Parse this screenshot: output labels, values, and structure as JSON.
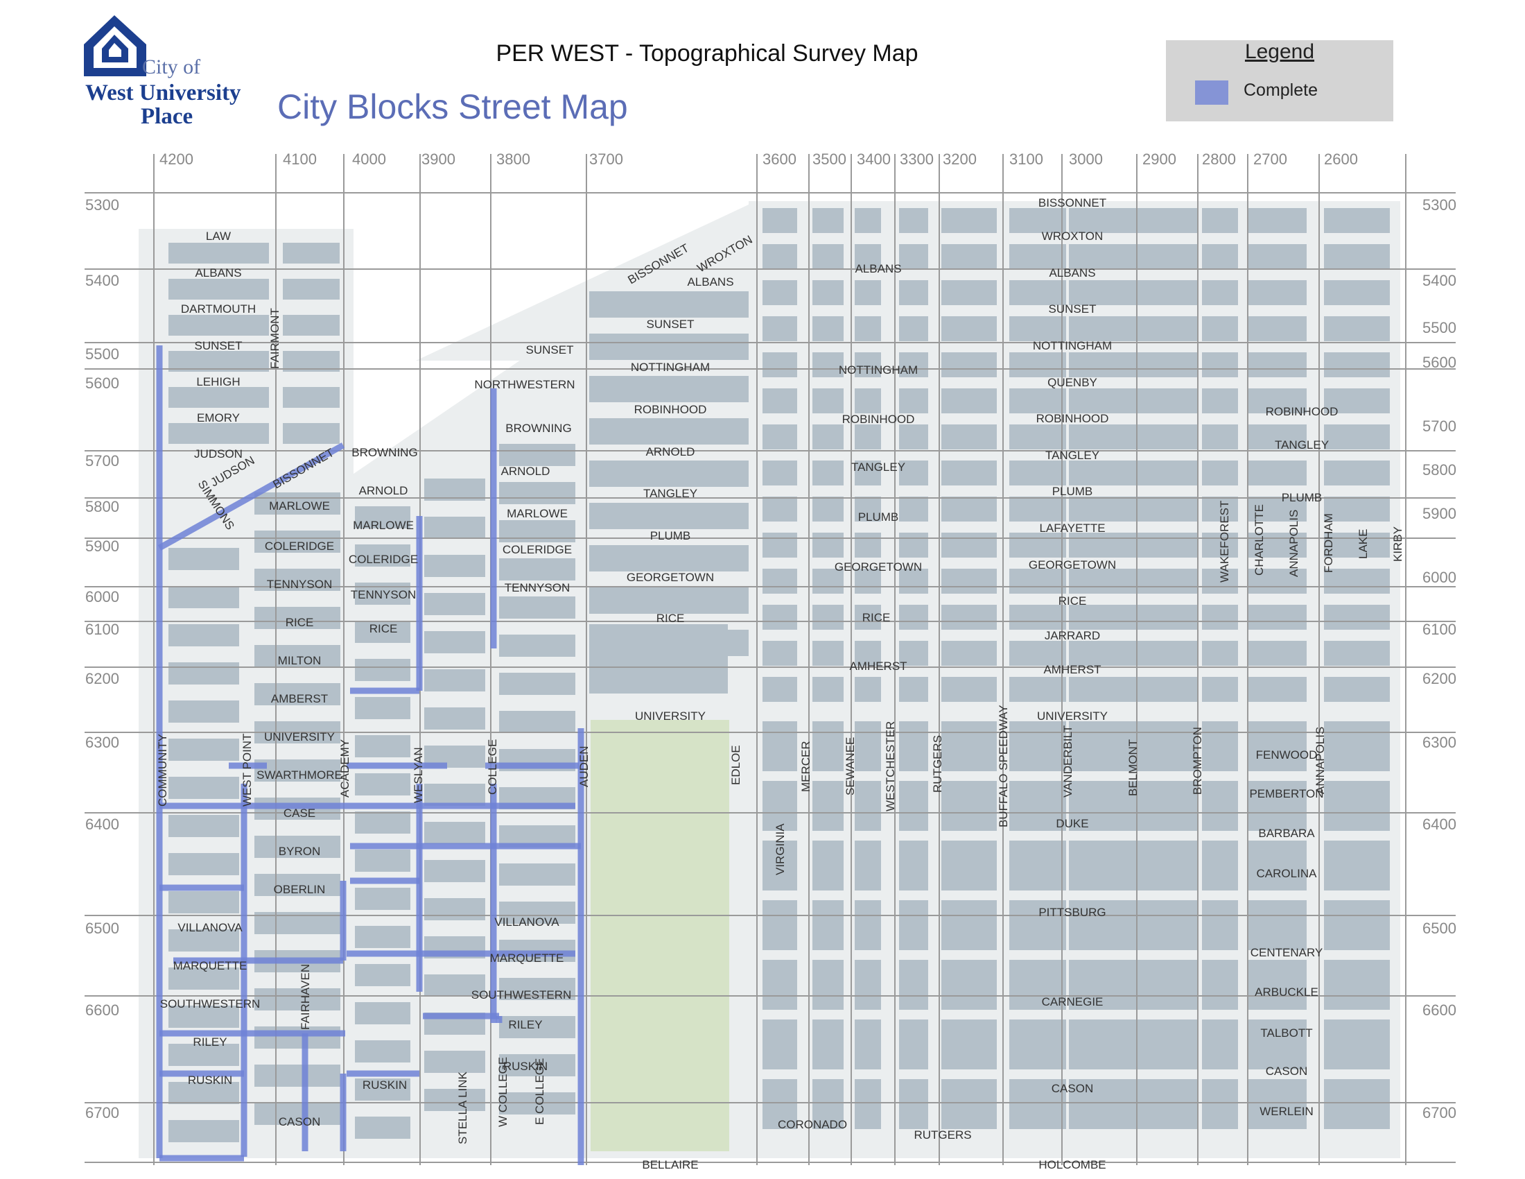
{
  "header": {
    "title": "PER WEST - Topographical Survey Map",
    "subtitle": "City Blocks Street Map"
  },
  "logo": {
    "line1": "City of",
    "line2": "West University",
    "line3": "Place"
  },
  "legend": {
    "title": "Legend",
    "items": [
      {
        "label": "Complete",
        "color": "#8594d6"
      }
    ]
  },
  "colors": {
    "block": "#b4c0c9",
    "background_area": "#ebeeef",
    "park": "#d6e3c7",
    "complete": "#6f81d6",
    "grid": "#9a9a9a"
  },
  "map": {
    "top_numbers": [
      "4200",
      "4100",
      "4000",
      "3900",
      "3800",
      "3700",
      "3600",
      "3500",
      "3400",
      "3300",
      "3200",
      "3100",
      "3000",
      "2900",
      "2800",
      "2700",
      "2600"
    ],
    "left_numbers": [
      "5300",
      "5400",
      "5500",
      "5600",
      "5700",
      "5800",
      "5900",
      "6000",
      "6100",
      "6200",
      "6300",
      "6400",
      "6500",
      "6600",
      "6700"
    ],
    "right_numbers": [
      "5300",
      "5400",
      "5500",
      "5600",
      "5700",
      "5800",
      "5900",
      "6000",
      "6100",
      "6200",
      "6300",
      "6400",
      "6500",
      "6600",
      "6700"
    ],
    "streets_west": [
      "LAW",
      "ALBANS",
      "DARTMOUTH",
      "SUNSET",
      "LEHIGH",
      "EMORY",
      "JUDSON",
      "MARLOWE",
      "COLERIDGE",
      "TENNYSON",
      "RICE",
      "MILTON",
      "AMBERST",
      "UNIVERSITY",
      "SWARTHMORE",
      "CASE",
      "BYRON",
      "OBERLIN",
      "VILLANOVA",
      "MARQUETTE",
      "SOUTHWESTERN",
      "RILEY",
      "RUSKIN",
      "CASON"
    ],
    "streets_middle": [
      "BROWNING",
      "ARNOLD",
      "MARLOWE",
      "COLERIDGE",
      "TENNYSON",
      "RICE",
      "NORTHWESTERN",
      "BROWNING",
      "ARNOLD",
      "MARLOWE",
      "COLERIDGE",
      "TENNYSON",
      "VILLANOVA",
      "MARQUETTE",
      "SOUTHWESTERN",
      "RILEY",
      "RUSKIN",
      "RUSKIN"
    ],
    "streets_center": [
      "ALBANS",
      "SUNSET",
      "SUNSET",
      "NOTTINGHAM",
      "ROBINHOOD",
      "ARNOLD",
      "TANGLEY",
      "PLUMB",
      "GEORGETOWN",
      "RICE",
      "UNIVERSITY",
      "BELLAIRE"
    ],
    "streets_east": [
      "ALBANS",
      "NOTTINGHAM",
      "ROBINHOOD",
      "TANGLEY",
      "PLUMB",
      "GEORGETOWN",
      "RICE",
      "AMHERST",
      "CORONADO",
      "RUTGERS"
    ],
    "streets_far_east": [
      "BISSONNET",
      "WROXTON",
      "ALBANS",
      "SUNSET",
      "NOTTINGHAM",
      "QUENBY",
      "ROBINHOOD",
      "TANGLEY",
      "PLUMB",
      "LAFAYETTE",
      "GEORGETOWN",
      "RICE",
      "JARRARD",
      "AMHERST",
      "UNIVERSITY",
      "DUKE",
      "PITTSBURG",
      "CARNEGIE",
      "CASON",
      "HOLCOMBE"
    ],
    "streets_south_east": [
      "ROBINHOOD",
      "TANGLEY",
      "PLUMB",
      "FENWOOD",
      "PEMBERTON",
      "BARBARA",
      "CAROLINA",
      "CENTENARY",
      "ARBUCKLE",
      "TALBOTT",
      "CASON",
      "WERLEIN"
    ],
    "diagonal_streets": [
      "BISSONNET",
      "WROXTON",
      "JUDSON",
      "BISSONNET",
      "SIMMONS"
    ],
    "vertical_streets": [
      "FAIRMONT",
      "COMMUNITY",
      "WEST POINT",
      "ACADEMY",
      "WESLYAN",
      "COLLEGE",
      "AUDEN",
      "EDLOE",
      "MERCER",
      "SEWANEE",
      "WESTCHESTER",
      "RUTGERS",
      "BUFFALO SPEEDWAY",
      "VANDERBILT",
      "BELMONT",
      "BROMPTON",
      "ANNAPOLIS",
      "VIRGINIA",
      "FAIRHAVEN",
      "STELLA LINK",
      "W COLLEGE",
      "E COLLEGE",
      "WAKEFOREST",
      "CHARLOTTE",
      "ANNAPOLIS",
      "FORDHAM",
      "LAKE",
      "KIRBY"
    ]
  }
}
